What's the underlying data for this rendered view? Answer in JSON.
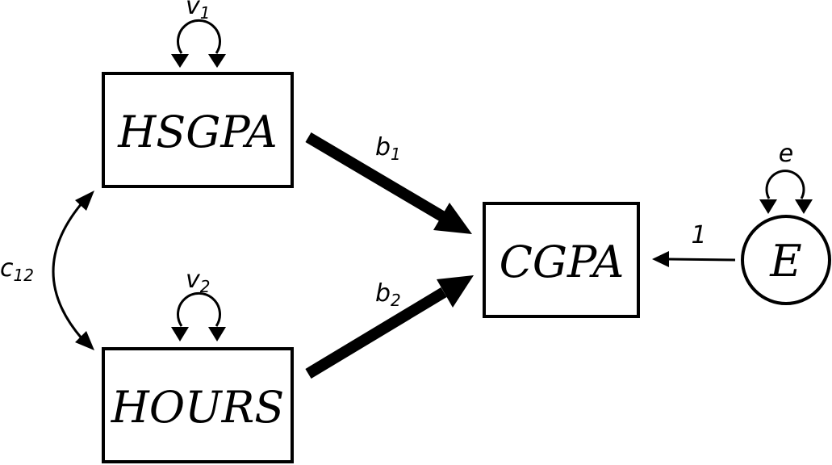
{
  "nodes": {
    "hsgpa": "HSGPA",
    "hours": "HOURS",
    "cgpa": "CGPA",
    "error": "E"
  },
  "params": {
    "v1": {
      "base": "v",
      "sub": "1"
    },
    "v2": {
      "base": "v",
      "sub": "2"
    },
    "b1": {
      "base": "b",
      "sub": "1"
    },
    "b2": {
      "base": "b",
      "sub": "2"
    },
    "c12": {
      "base": "c",
      "sub": "12"
    },
    "e": "e",
    "one": "1"
  },
  "colors": {
    "stroke": "#000000",
    "background": "#ffffff"
  }
}
